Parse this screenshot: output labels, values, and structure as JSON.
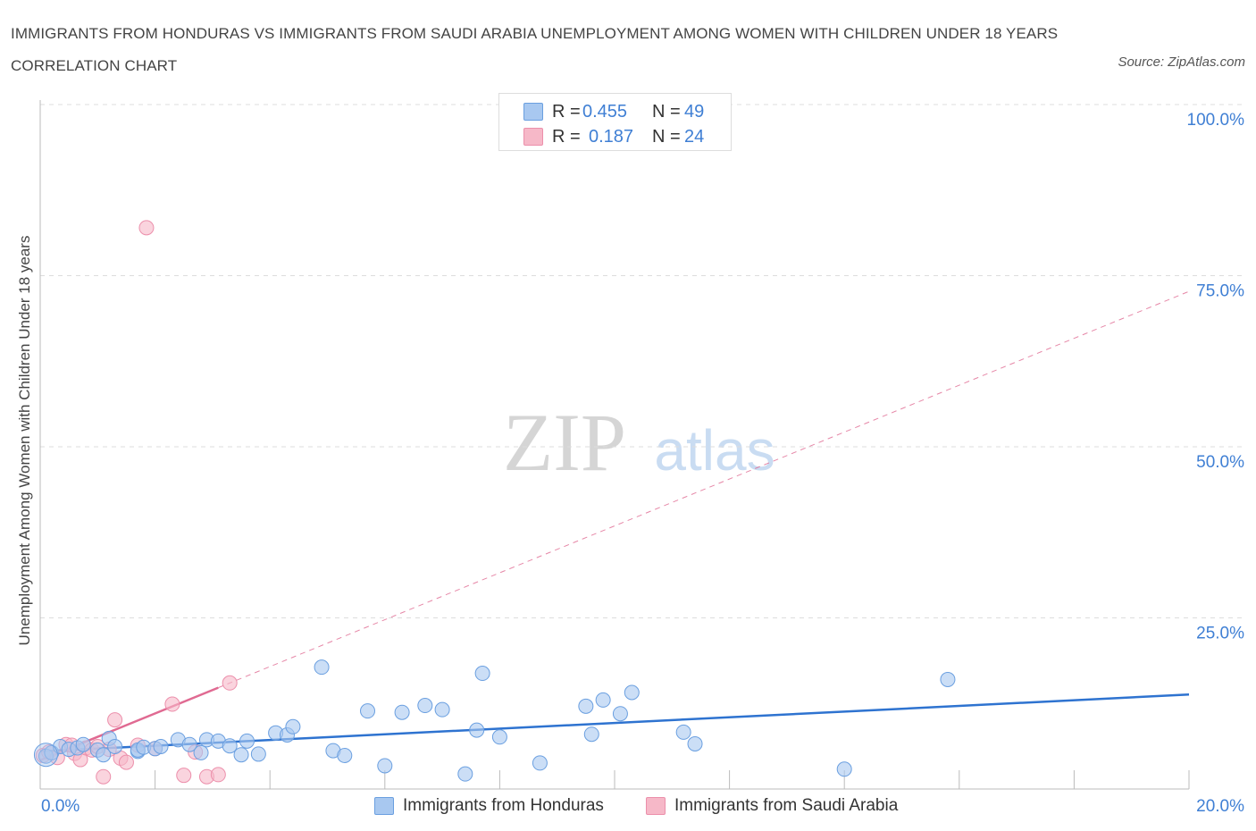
{
  "title": "IMMIGRANTS FROM HONDURAS VS IMMIGRANTS FROM SAUDI ARABIA UNEMPLOYMENT AMONG WOMEN WITH CHILDREN UNDER 18 YEARS CORRELATION CHART",
  "source": "Source: ZipAtlas.com",
  "watermark": {
    "zip": "ZIP",
    "atlas": "atlas"
  },
  "legend": {
    "honduras": {
      "r_label": "R =",
      "r_value": "0.455",
      "n_label": "N =",
      "n_value": "49"
    },
    "saudi": {
      "r_label": "R =",
      "r_value": "0.187",
      "n_label": "N =",
      "n_value": "24"
    }
  },
  "colors": {
    "honduras_fill": "#a8c8f0",
    "honduras_stroke": "#6a9fe0",
    "honduras_line": "#2e73d0",
    "saudi_fill": "#f6b8c8",
    "saudi_stroke": "#ec8fab",
    "saudi_line": "#e06a92",
    "axis_text": "#3f7fd4",
    "grid": "#dddddd"
  },
  "chart_data": {
    "type": "scatter",
    "title": "IMMIGRANTS FROM HONDURAS VS IMMIGRANTS FROM SAUDI ARABIA UNEMPLOYMENT AMONG WOMEN WITH CHILDREN UNDER 18 YEARS CORRELATION CHART",
    "xlabel": "",
    "ylabel": "Unemployment Among Women with Children Under 18 years",
    "xlim": [
      0,
      20
    ],
    "ylim": [
      0,
      100
    ],
    "x_tick_labels": [
      "0.0%",
      "20.0%"
    ],
    "y_ticks": [
      25,
      50,
      75,
      100
    ],
    "y_tick_labels": [
      "25.0%",
      "50.0%",
      "75.0%",
      "100.0%"
    ],
    "legend_position": "top-center",
    "series": [
      {
        "name": "Immigrants from Honduras",
        "R": 0.455,
        "N": 49,
        "points": [
          [
            0.1,
            4.8
          ],
          [
            0.2,
            5.3
          ],
          [
            0.35,
            6.2
          ],
          [
            0.5,
            5.8
          ],
          [
            0.65,
            6.0
          ],
          [
            0.75,
            6.5
          ],
          [
            1.0,
            5.7
          ],
          [
            1.1,
            5.0
          ],
          [
            1.2,
            7.4
          ],
          [
            1.3,
            6.2
          ],
          [
            1.7,
            5.5
          ],
          [
            1.7,
            5.7
          ],
          [
            1.8,
            6.1
          ],
          [
            2.0,
            5.9
          ],
          [
            2.1,
            6.2
          ],
          [
            2.4,
            7.2
          ],
          [
            2.6,
            6.5
          ],
          [
            2.8,
            5.3
          ],
          [
            2.9,
            7.2
          ],
          [
            3.1,
            7.0
          ],
          [
            3.3,
            6.3
          ],
          [
            3.5,
            5.0
          ],
          [
            3.6,
            7.0
          ],
          [
            3.8,
            5.1
          ],
          [
            4.1,
            8.2
          ],
          [
            4.3,
            7.9
          ],
          [
            4.4,
            9.1
          ],
          [
            4.9,
            17.8
          ],
          [
            5.1,
            5.6
          ],
          [
            5.3,
            4.9
          ],
          [
            5.7,
            11.4
          ],
          [
            6.0,
            3.4
          ],
          [
            6.3,
            11.2
          ],
          [
            6.7,
            12.2
          ],
          [
            7.0,
            11.6
          ],
          [
            7.4,
            2.2
          ],
          [
            7.6,
            8.6
          ],
          [
            7.7,
            16.9
          ],
          [
            8.0,
            7.6
          ],
          [
            8.7,
            3.8
          ],
          [
            9.5,
            12.1
          ],
          [
            9.6,
            8.0
          ],
          [
            9.8,
            13.0
          ],
          [
            10.1,
            11.0
          ],
          [
            10.3,
            14.1
          ],
          [
            11.2,
            8.3
          ],
          [
            11.4,
            6.6
          ],
          [
            14.0,
            2.9
          ],
          [
            15.8,
            16.0
          ]
        ],
        "trend": [
          [
            0.0,
            5.5
          ],
          [
            20.0,
            13.8
          ]
        ]
      },
      {
        "name": "Immigrants from Saudi Arabia",
        "R": 0.187,
        "N": 24,
        "points": [
          [
            0.05,
            4.9
          ],
          [
            0.15,
            5.4
          ],
          [
            0.3,
            4.6
          ],
          [
            0.45,
            6.5
          ],
          [
            0.6,
            5.2
          ],
          [
            0.7,
            4.3
          ],
          [
            0.8,
            6.0
          ],
          [
            0.9,
            5.7
          ],
          [
            1.0,
            6.2
          ],
          [
            1.1,
            1.8
          ],
          [
            1.2,
            5.8
          ],
          [
            1.3,
            10.1
          ],
          [
            1.4,
            4.5
          ],
          [
            1.5,
            3.9
          ],
          [
            1.85,
            82.0
          ],
          [
            2.0,
            5.9
          ],
          [
            2.3,
            12.4
          ],
          [
            2.5,
            2.0
          ],
          [
            2.7,
            5.4
          ],
          [
            2.9,
            1.8
          ],
          [
            3.1,
            2.1
          ],
          [
            3.3,
            15.5
          ],
          [
            1.7,
            6.4
          ],
          [
            0.55,
            6.4
          ]
        ],
        "trend": [
          [
            0.0,
            4.2
          ],
          [
            3.1,
            14.8
          ]
        ],
        "trend_extension": [
          [
            3.1,
            14.8
          ],
          [
            20.0,
            72.7
          ]
        ]
      }
    ]
  },
  "bottom_legend": [
    {
      "label": "Immigrants from Honduras"
    },
    {
      "label": "Immigrants from Saudi Arabia"
    }
  ]
}
